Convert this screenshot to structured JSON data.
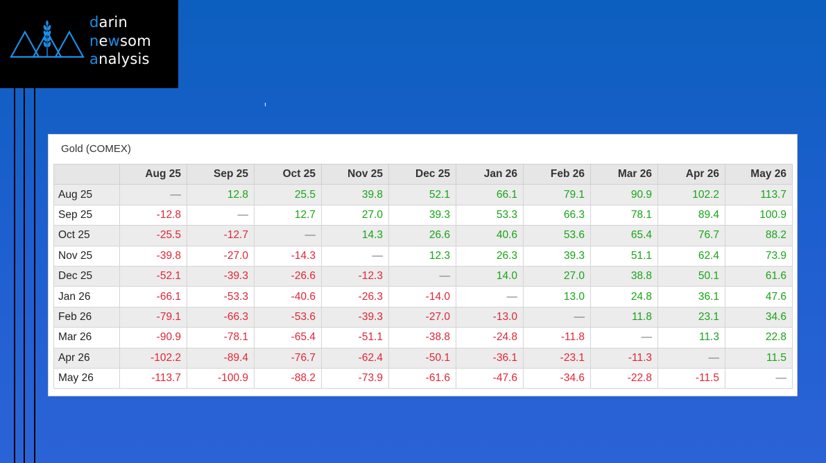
{
  "logo": {
    "lines": [
      {
        "first": "d",
        "rest": "arin"
      },
      {
        "first": "n",
        "mid": "e",
        "accent": "w",
        "rest": "som"
      },
      {
        "first": "a",
        "rest": "nalysis"
      }
    ],
    "accent_color": "#1c8fe8"
  },
  "table": {
    "title": "Gold (COMEX)",
    "columns": [
      "Aug 25",
      "Sep 25",
      "Oct 25",
      "Nov 25",
      "Dec 25",
      "Jan 26",
      "Feb 26",
      "Mar 26",
      "Apr 26",
      "May 26"
    ],
    "rows": [
      {
        "label": "Aug 25",
        "cells": [
          "—",
          "12.8",
          "25.5",
          "39.8",
          "52.1",
          "66.1",
          "79.1",
          "90.9",
          "102.2",
          "113.7"
        ]
      },
      {
        "label": "Sep 25",
        "cells": [
          "-12.8",
          "—",
          "12.7",
          "27.0",
          "39.3",
          "53.3",
          "66.3",
          "78.1",
          "89.4",
          "100.9"
        ]
      },
      {
        "label": "Oct 25",
        "cells": [
          "-25.5",
          "-12.7",
          "—",
          "14.3",
          "26.6",
          "40.6",
          "53.6",
          "65.4",
          "76.7",
          "88.2"
        ]
      },
      {
        "label": "Nov 25",
        "cells": [
          "-39.8",
          "-27.0",
          "-14.3",
          "—",
          "12.3",
          "26.3",
          "39.3",
          "51.1",
          "62.4",
          "73.9"
        ]
      },
      {
        "label": "Dec 25",
        "cells": [
          "-52.1",
          "-39.3",
          "-26.6",
          "-12.3",
          "—",
          "14.0",
          "27.0",
          "38.8",
          "50.1",
          "61.6"
        ]
      },
      {
        "label": "Jan 26",
        "cells": [
          "-66.1",
          "-53.3",
          "-40.6",
          "-26.3",
          "-14.0",
          "—",
          "13.0",
          "24.8",
          "36.1",
          "47.6"
        ]
      },
      {
        "label": "Feb 26",
        "cells": [
          "-79.1",
          "-66.3",
          "-53.6",
          "-39.3",
          "-27.0",
          "-13.0",
          "—",
          "11.8",
          "23.1",
          "34.6"
        ]
      },
      {
        "label": "Mar 26",
        "cells": [
          "-90.9",
          "-78.1",
          "-65.4",
          "-51.1",
          "-38.8",
          "-24.8",
          "-11.8",
          "—",
          "11.3",
          "22.8"
        ]
      },
      {
        "label": "Apr 26",
        "cells": [
          "-102.2",
          "-89.4",
          "-76.7",
          "-62.4",
          "-50.1",
          "-36.1",
          "-23.1",
          "-11.3",
          "—",
          "11.5"
        ]
      },
      {
        "label": "May 26",
        "cells": [
          "-113.7",
          "-100.9",
          "-88.2",
          "-73.9",
          "-61.6",
          "-47.6",
          "-34.6",
          "-22.8",
          "-11.5",
          "—"
        ]
      }
    ],
    "colors": {
      "positive": "#16a516",
      "negative": "#e02535",
      "zero": "#777777"
    }
  }
}
